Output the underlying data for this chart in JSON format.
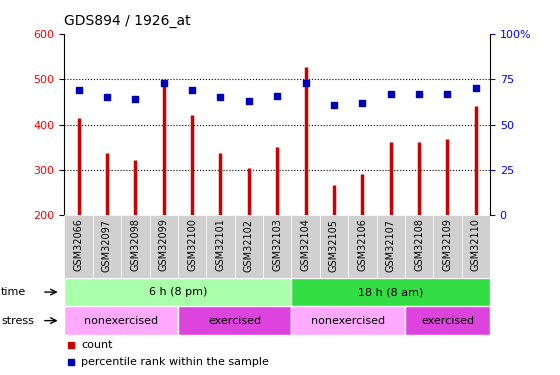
{
  "title": "GDS894 / 1926_at",
  "categories": [
    "GSM32066",
    "GSM32097",
    "GSM32098",
    "GSM32099",
    "GSM32100",
    "GSM32101",
    "GSM32102",
    "GSM32103",
    "GSM32104",
    "GSM32105",
    "GSM32106",
    "GSM32107",
    "GSM32108",
    "GSM32109",
    "GSM32110"
  ],
  "counts": [
    415,
    337,
    323,
    497,
    422,
    337,
    305,
    350,
    527,
    268,
    292,
    362,
    362,
    368,
    441
  ],
  "percentiles": [
    69,
    65,
    64,
    73,
    69,
    65,
    63,
    66,
    73,
    61,
    62,
    67,
    67,
    67,
    70
  ],
  "ylim_left": [
    200,
    600
  ],
  "ylim_right": [
    0,
    100
  ],
  "yticks_left": [
    200,
    300,
    400,
    500,
    600
  ],
  "yticks_right": [
    0,
    25,
    50,
    75,
    100
  ],
  "ytick_right_labels": [
    "0",
    "25",
    "50",
    "75",
    "100%"
  ],
  "bar_color": "#cc0000",
  "dot_color": "#0000bb",
  "bg_color": "#ffffff",
  "xtick_bg": "#d0d0d0",
  "time_groups": [
    {
      "label": "6 h (8 pm)",
      "start": 0,
      "end": 7,
      "color": "#aaffaa"
    },
    {
      "label": "18 h (8 am)",
      "start": 8,
      "end": 14,
      "color": "#33dd44"
    }
  ],
  "stress_groups": [
    {
      "label": "nonexercised",
      "start": 0,
      "end": 3,
      "color": "#ffaaff"
    },
    {
      "label": "exercised",
      "start": 4,
      "end": 7,
      "color": "#dd44dd"
    },
    {
      "label": "nonexercised",
      "start": 8,
      "end": 11,
      "color": "#ffaaff"
    },
    {
      "label": "exercised",
      "start": 12,
      "end": 14,
      "color": "#dd44dd"
    }
  ],
  "legend_count_color": "#cc0000",
  "legend_dot_color": "#0000bb",
  "tick_label_fontsize": 7,
  "title_fontsize": 10,
  "annot_fontsize": 8,
  "label_fontsize": 8
}
